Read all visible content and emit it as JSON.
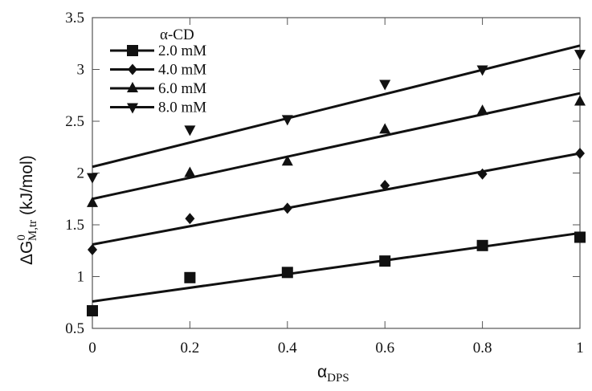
{
  "chart_data": {
    "type": "scatter",
    "xlabel": {
      "main": "α",
      "sub": "DPS"
    },
    "ylabel": {
      "main": "ΔG",
      "sup": "0",
      "sub": "M,tr",
      "unit": " (kJ/mol)"
    },
    "xlim": [
      0,
      1
    ],
    "ylim": [
      0.5,
      3.5
    ],
    "xticks": [
      "0",
      "0.2",
      "0.4",
      "0.6",
      "0.8",
      "1"
    ],
    "yticks": [
      "0.5",
      "1",
      "1.5",
      "2",
      "2.5",
      "3",
      "3.5"
    ],
    "grid": false,
    "legend": {
      "title": "α-CD",
      "placement": "top-left"
    },
    "x": [
      0,
      0.2,
      0.4,
      0.6,
      0.8,
      1.0
    ],
    "series": [
      {
        "name": "2.0 mM",
        "marker": "square",
        "values": [
          0.67,
          0.99,
          1.04,
          1.15,
          1.3,
          1.38
        ],
        "fit": [
          0.76,
          1.42
        ]
      },
      {
        "name": "4.0 mM",
        "marker": "diamond",
        "values": [
          1.26,
          1.56,
          1.66,
          1.88,
          1.99,
          2.19
        ],
        "fit": [
          1.31,
          2.19
        ]
      },
      {
        "name": "6.0 mM",
        "marker": "triangle-up",
        "values": [
          1.71,
          2.0,
          2.11,
          2.42,
          2.6,
          2.69
        ],
        "fit": [
          1.75,
          2.77
        ]
      },
      {
        "name": "8.0 mM",
        "marker": "triangle-down",
        "values": [
          1.96,
          2.42,
          2.52,
          2.86,
          3.0,
          3.15
        ],
        "fit": [
          2.06,
          3.23
        ]
      }
    ],
    "color": "#111111"
  }
}
